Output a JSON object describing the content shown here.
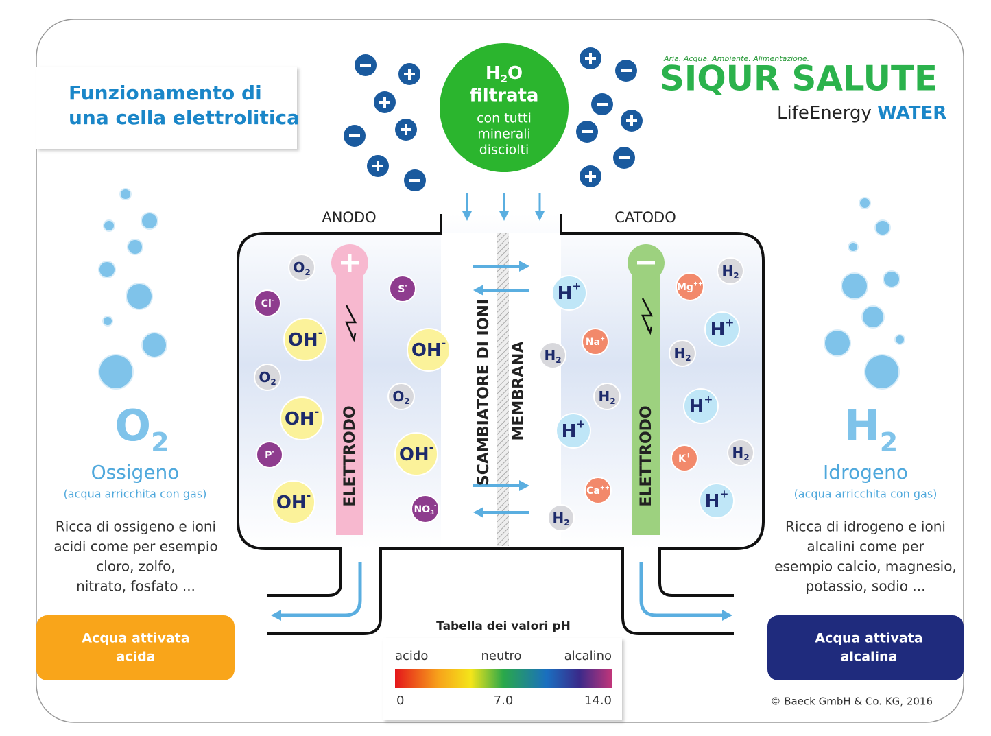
{
  "title": {
    "line1": "Funzionamento di",
    "line2": "una cella elettrolitica"
  },
  "logo": {
    "tagline": "Aria. Acqua. Ambiente. Alimentazione.",
    "brand": "SIQUR SALUTE",
    "sub1": "LifeEnergy",
    "sub2": "WATER"
  },
  "input": {
    "formula": {
      "h": "H",
      "sub": "2",
      "o": "O"
    },
    "word": "filtrata",
    "lines": [
      "con tutti",
      "minerali",
      "disciolti"
    ]
  },
  "labels": {
    "anode": "ANODO",
    "cathode": "CATODO",
    "electrode_left": "ELETTRODO",
    "electrode_right": "ELETTRODO",
    "exchanger": "SCAMBIATORE DI IONI",
    "membrane": "MEMBRANA"
  },
  "ions": [
    {
      "label": "O",
      "sub": "2",
      "color": "#d8d8dc"
    },
    {
      "label": "Cl",
      "sup": "-",
      "color": "#8e3c8e"
    },
    {
      "label": "OH",
      "sup": "-",
      "color": "#fbf29a"
    },
    {
      "label": "O",
      "sub": "2",
      "color": "#d8d8dc"
    },
    {
      "label": "OH",
      "sup": "-",
      "color": "#fbf29a"
    },
    {
      "label": "P",
      "sup": "-",
      "color": "#8e3c8e"
    },
    {
      "label": "OH",
      "sup": "-",
      "color": "#fbf29a"
    },
    {
      "label": "S",
      "sup": "-",
      "color": "#8e3c8e"
    },
    {
      "label": "OH",
      "sup": "-",
      "color": "#fbf29a"
    },
    {
      "label": "O",
      "sub": "2",
      "color": "#d8d8dc"
    },
    {
      "label": "OH",
      "sup": "-",
      "color": "#fbf29a"
    },
    {
      "label": "NO",
      "sub": "3",
      "sup": "-",
      "color": "#8e3c8e"
    },
    {
      "label": "H",
      "sup": "+",
      "color": "#bfe6f7"
    },
    {
      "label": "H",
      "sub": "2",
      "color": "#d8d8dc"
    },
    {
      "label": "Na",
      "sup": "+",
      "color": "#f2896b"
    },
    {
      "label": "H",
      "sub": "2",
      "color": "#d8d8dc"
    },
    {
      "label": "H",
      "sup": "+",
      "color": "#bfe6f7"
    },
    {
      "label": "Ca",
      "sup": "++",
      "color": "#f2896b"
    },
    {
      "label": "H",
      "sub": "2",
      "color": "#d8d8dc"
    },
    {
      "label": "Mg",
      "sup": "++",
      "color": "#f2896b"
    },
    {
      "label": "H",
      "sub": "2",
      "color": "#d8d8dc"
    },
    {
      "label": "H",
      "sup": "+",
      "color": "#bfe6f7"
    },
    {
      "label": "H",
      "sub": "2",
      "color": "#d8d8dc"
    },
    {
      "label": "H",
      "sup": "+",
      "color": "#bfe6f7"
    },
    {
      "label": "K",
      "sup": "+",
      "color": "#f2896b"
    },
    {
      "label": "H",
      "sub": "2",
      "color": "#d8d8dc"
    },
    {
      "label": "H",
      "sup": "+",
      "color": "#bfe6f7"
    }
  ],
  "left": {
    "symbol": "O",
    "sub": "2",
    "name": "Ossigeno",
    "note": "(acqua arricchita con gas)",
    "desc": [
      "Ricca di ossigeno e ioni",
      "acidi come per esempio",
      "cloro, zolfo,",
      "nitrato, fosfato ..."
    ],
    "output": [
      "Acqua attivata",
      "acida"
    ]
  },
  "right": {
    "symbol": "H",
    "sub": "2",
    "name": "Idrogeno",
    "note": "(acqua arricchita con gas)",
    "desc": [
      "Ricca di idrogeno e ioni",
      "alcalini come per",
      "esempio calcio, magnesio,",
      "potassio, sodio ..."
    ],
    "output": [
      "Acqua attivata",
      "alcalina"
    ]
  },
  "ph": {
    "title": "Tabella dei valori pH",
    "acid": "acido",
    "neutral": "neutro",
    "alkaline": "alcalino",
    "min": "0",
    "mid": "7.0",
    "max": "14.0"
  },
  "copyright": "© Baeck GmbH & Co. KG, 2016"
}
